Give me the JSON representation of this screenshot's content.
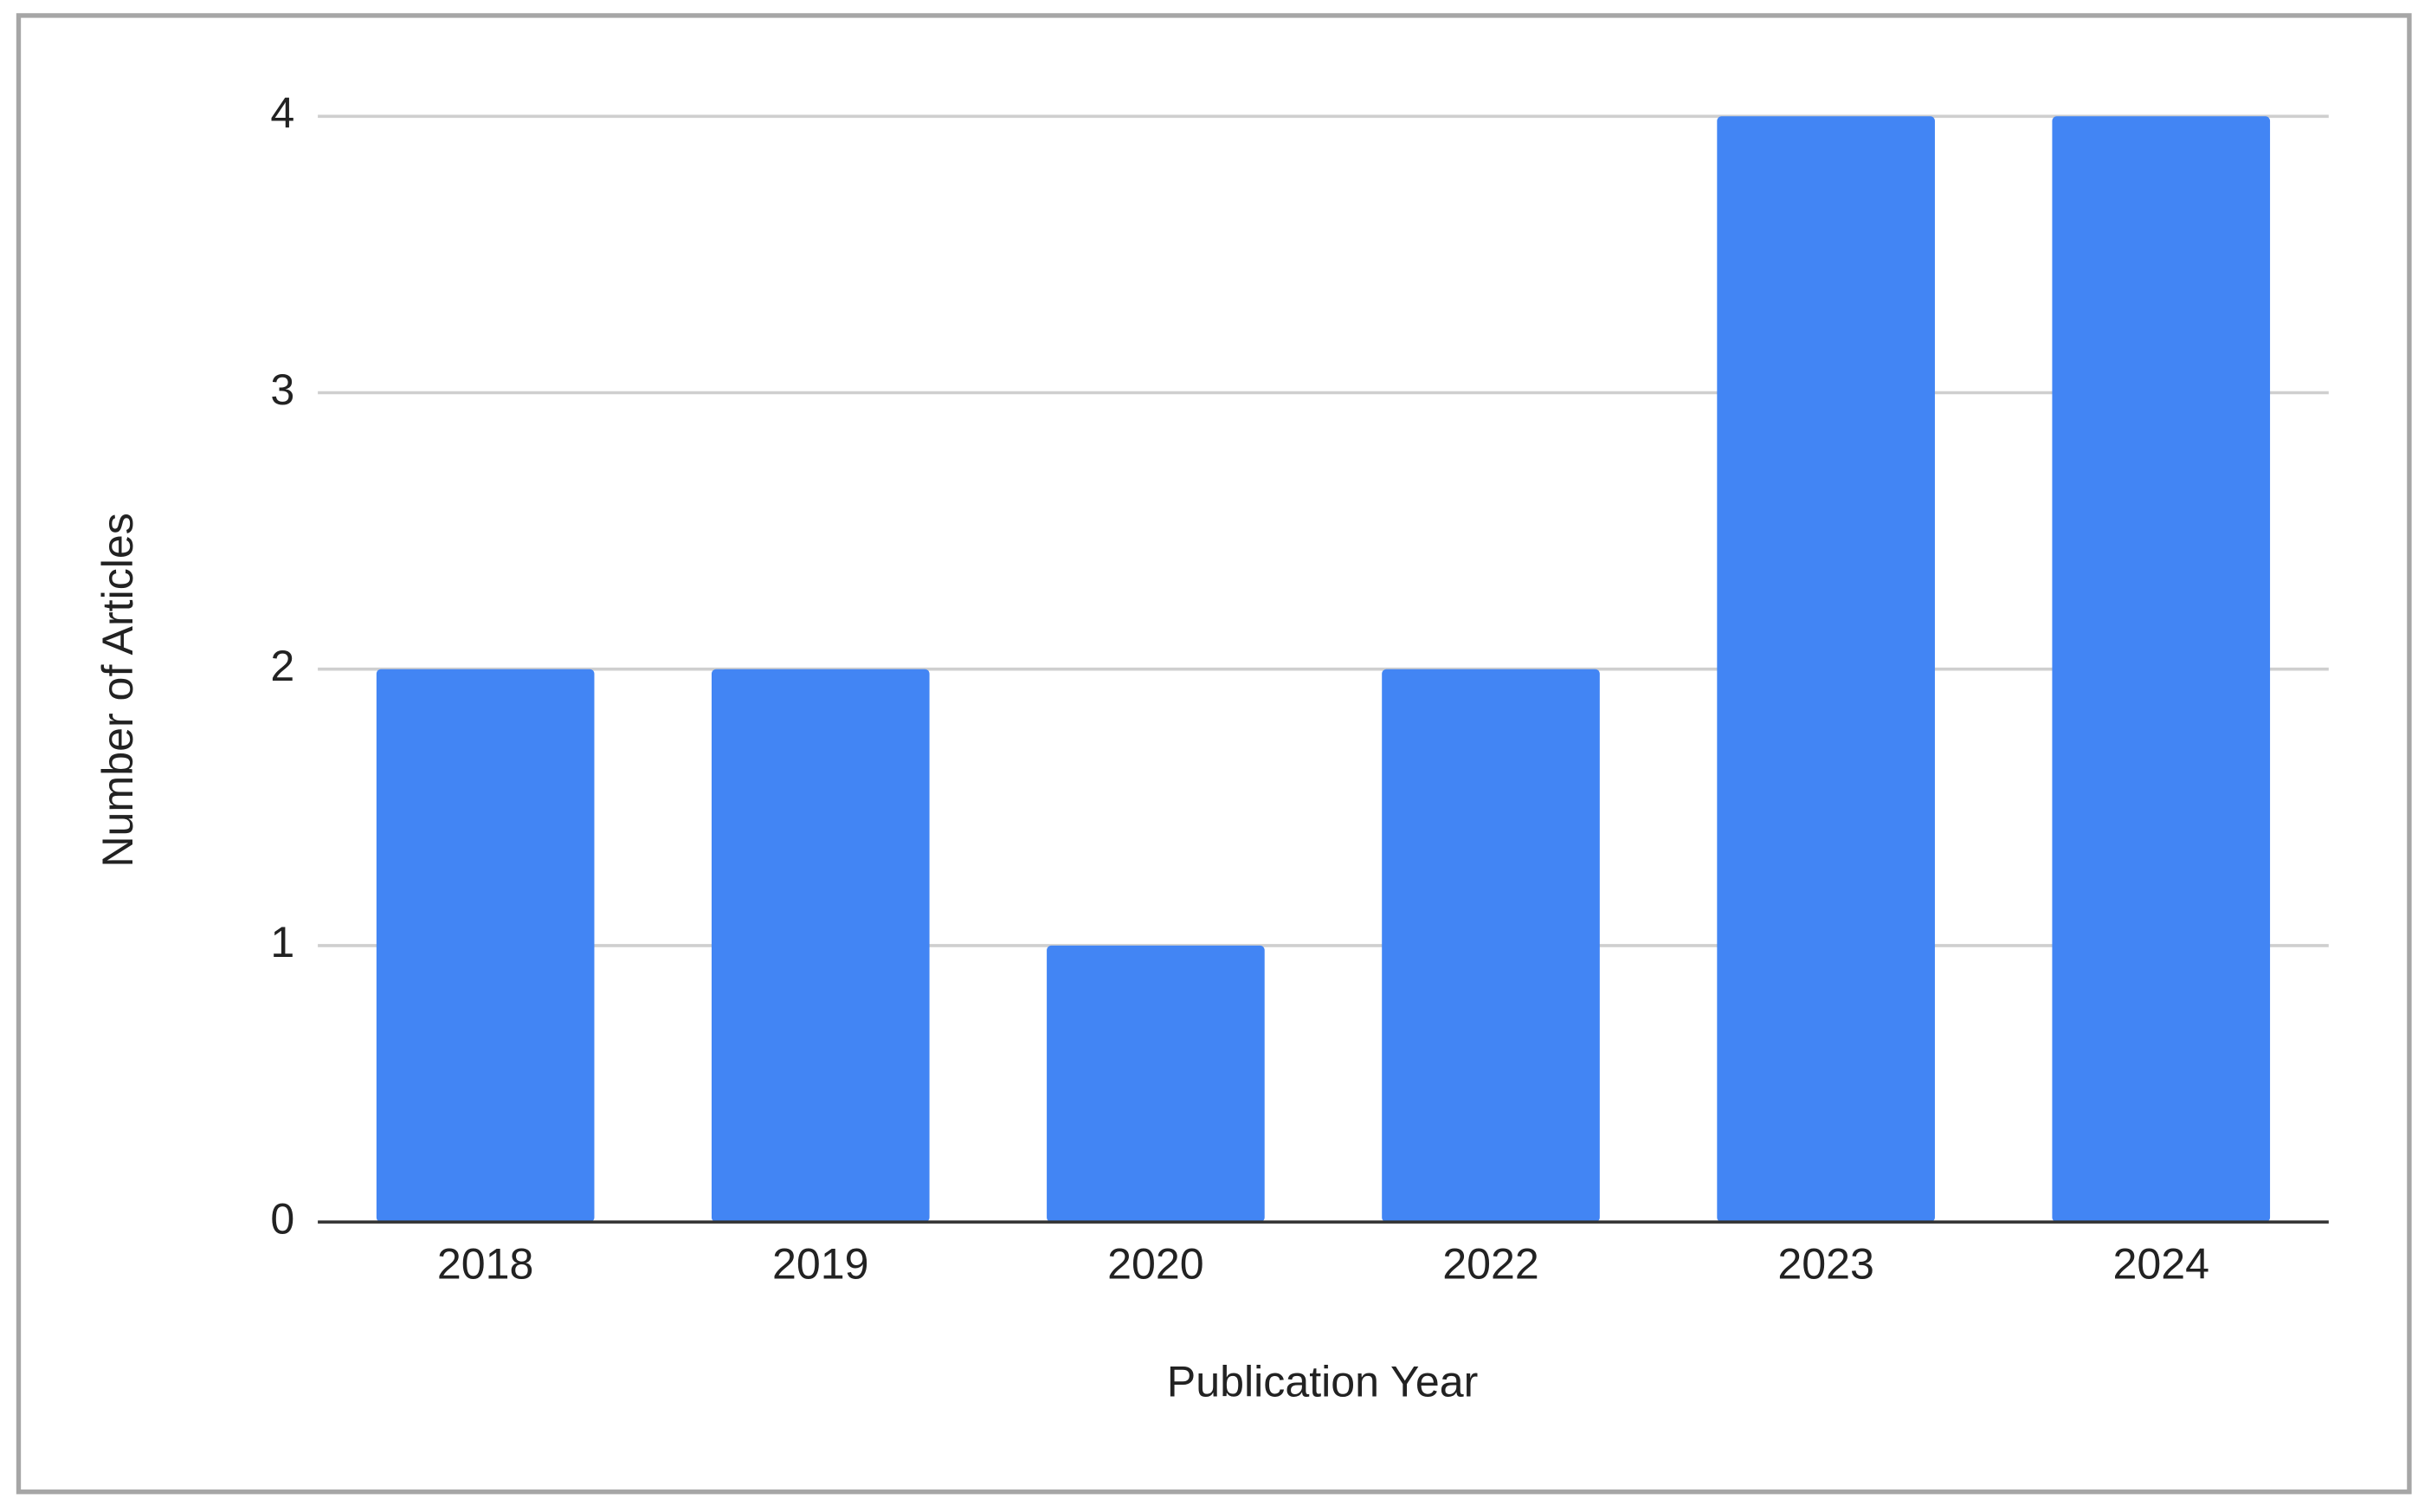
{
  "chart_data": {
    "type": "bar",
    "x_label": "Publication Year",
    "y_label": "Number of Articles",
    "categories": [
      "2018",
      "2019",
      "2020",
      "2022",
      "2023",
      "2024"
    ],
    "values": [
      2,
      2,
      1,
      2,
      4,
      4
    ],
    "color": "#4285f4",
    "ylim": [
      0,
      4
    ],
    "yticks": [
      0,
      1,
      2,
      3,
      4
    ],
    "grid": true
  }
}
